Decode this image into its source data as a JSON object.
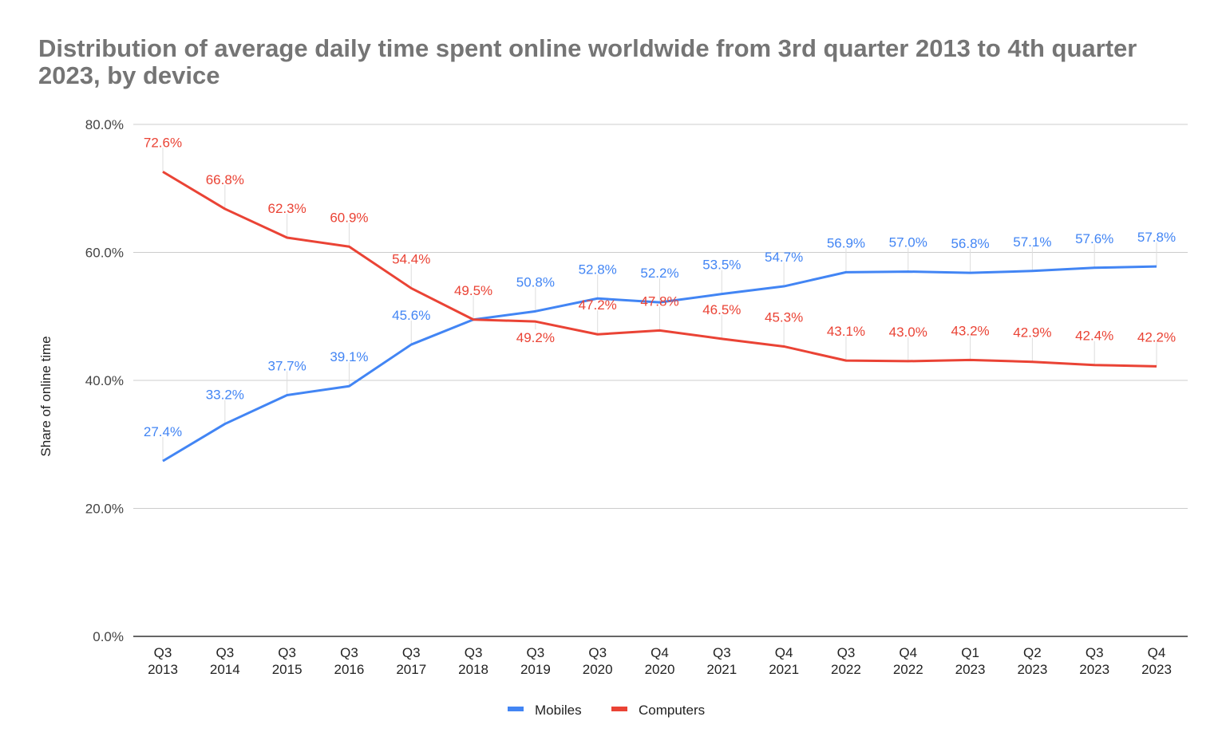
{
  "chart_data": {
    "type": "line",
    "title": "Distribution of average daily time spent online worldwide from 3rd quarter 2013 to 4th quarter 2023, by device",
    "xlabel": "",
    "ylabel": "Share of online time",
    "ylim": [
      0,
      80
    ],
    "yticks": [
      "0.0%",
      "20.0%",
      "40.0%",
      "60.0%",
      "80.0%"
    ],
    "grid": true,
    "legend_position": "bottom",
    "categories": [
      [
        "Q3",
        "2013"
      ],
      [
        "Q3",
        "2014"
      ],
      [
        "Q3",
        "2015"
      ],
      [
        "Q3",
        "2016"
      ],
      [
        "Q3",
        "2017"
      ],
      [
        "Q3",
        "2018"
      ],
      [
        "Q3",
        "2019"
      ],
      [
        "Q3",
        "2020"
      ],
      [
        "Q4",
        "2020"
      ],
      [
        "Q3",
        "2021"
      ],
      [
        "Q4",
        "2021"
      ],
      [
        "Q3",
        "2022"
      ],
      [
        "Q4",
        "2022"
      ],
      [
        "Q1",
        "2023"
      ],
      [
        "Q2",
        "2023"
      ],
      [
        "Q3",
        "2023"
      ],
      [
        "Q4",
        "2023"
      ]
    ],
    "series": [
      {
        "name": "Mobiles",
        "color": "#4285f4",
        "values": [
          27.4,
          33.2,
          37.7,
          39.1,
          45.6,
          49.5,
          50.8,
          52.8,
          52.2,
          53.5,
          54.7,
          56.9,
          57.0,
          56.8,
          57.1,
          57.6,
          57.8
        ],
        "labels_shown": [
          true,
          true,
          true,
          true,
          true,
          false,
          true,
          true,
          true,
          true,
          true,
          true,
          true,
          true,
          true,
          true,
          true
        ]
      },
      {
        "name": "Computers",
        "color": "#ea4335",
        "values": [
          72.6,
          66.8,
          62.3,
          60.9,
          54.4,
          49.5,
          49.2,
          47.2,
          47.8,
          46.5,
          45.3,
          43.1,
          43.0,
          43.2,
          42.9,
          42.4,
          42.2
        ],
        "labels_shown": [
          true,
          true,
          true,
          true,
          true,
          true,
          true,
          true,
          true,
          true,
          true,
          true,
          true,
          true,
          true,
          true,
          true
        ]
      }
    ]
  }
}
